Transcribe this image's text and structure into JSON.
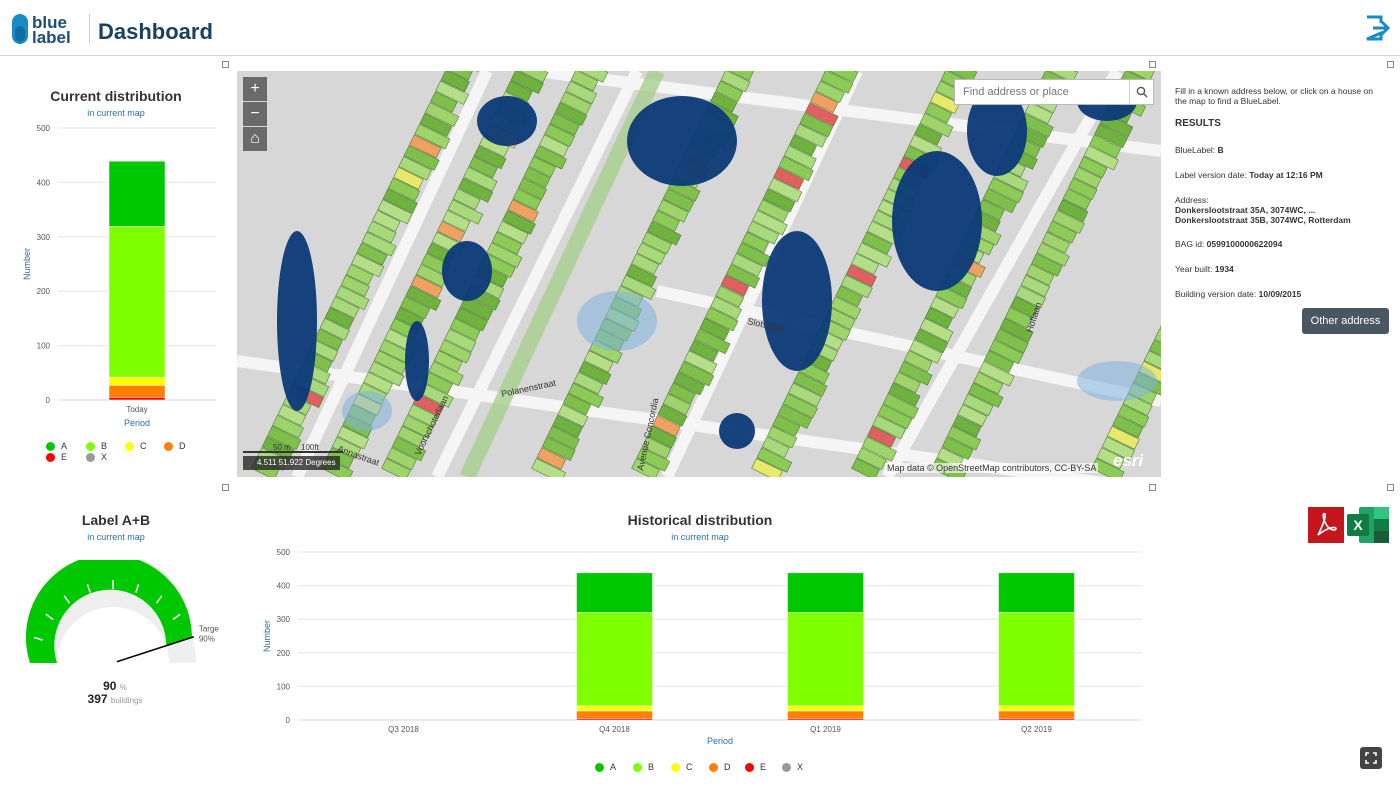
{
  "header": {
    "logo_line1": "blue",
    "logo_line2": "label",
    "title": "Dashboard",
    "logout_icon": "logout-icon"
  },
  "current_distribution": {
    "title": "Current distribution",
    "subtitle": "in current map",
    "chart_data": {
      "type": "bar",
      "stacked": true,
      "categories": [
        "Today"
      ],
      "series": [
        {
          "name": "A",
          "color": "#00c800",
          "values": [
            120
          ]
        },
        {
          "name": "B",
          "color": "#80ff00",
          "values": [
            277
          ]
        },
        {
          "name": "C",
          "color": "#ffff00",
          "values": [
            15
          ]
        },
        {
          "name": "D",
          "color": "#ff7f00",
          "values": [
            22
          ]
        },
        {
          "name": "E",
          "color": "#ff0000",
          "values": [
            5
          ]
        },
        {
          "name": "X",
          "color": "#999999",
          "values": [
            0
          ]
        }
      ],
      "xlabel": "Period",
      "ylabel": "Number",
      "ylim": [
        0,
        500
      ],
      "yticks": [
        "0",
        "100",
        "200",
        "300",
        "400",
        "500"
      ]
    }
  },
  "legend": [
    {
      "label": "A",
      "color": "#00c800"
    },
    {
      "label": "B",
      "color": "#80ff00"
    },
    {
      "label": "C",
      "color": "#ffff00"
    },
    {
      "label": "D",
      "color": "#ff7f00"
    },
    {
      "label": "E",
      "color": "#ff0000"
    },
    {
      "label": "X",
      "color": "#999999"
    }
  ],
  "map": {
    "search_placeholder": "Find address or place",
    "zoom_in": "+",
    "zoom_out": "−",
    "home": "⌂",
    "coords": "4.511 51.922 Degrees",
    "scale_m": "50 m",
    "scale_ft": "100ft",
    "attribution": "Map data © OpenStreetMap contributors, CC-BY-SA",
    "esri": "esri",
    "streets": [
      "Polanenstraat",
      "Annastraat",
      "Voorschoterlaan",
      "Avenue Concordia",
      "Slotstraat",
      "Hoflaan"
    ]
  },
  "info": {
    "intro": "Fill in a known address below, or click on a house on the map to find a BlueLabel.",
    "results": "RESULTS",
    "bluelabel_label": "BlueLabel:",
    "bluelabel_value": "B",
    "version_label": "Label version date:",
    "version_value": "Today at 12:16 PM",
    "address_label": "Address:",
    "address_line1": "Donkerslootstraat 35A, 3074WC, ...",
    "address_line2": "Donkerslootstraat 35B, 3074WC, Rotterdam",
    "bag_label": "BAG id:",
    "bag_value": "0599100000622094",
    "year_label": "Year built:",
    "year_value": "1934",
    "building_label": "Building version date:",
    "building_value": "10/09/2015",
    "other_button": "Other address"
  },
  "gauge": {
    "title": "Label A+B",
    "subtitle": "in current map",
    "value": 90,
    "value_text": "90",
    "unit": "%",
    "count": "397",
    "count_unit": "buildings",
    "target_label": "Targe",
    "target_value": "90%",
    "target": 90,
    "color": "#00c800"
  },
  "historical_distribution": {
    "title": "Historical distribution",
    "subtitle": "in current map",
    "chart_data": {
      "type": "bar",
      "stacked": true,
      "categories": [
        "Q3 2018",
        "Q4 2018",
        "Q1 2019",
        "Q2 2019"
      ],
      "series": [
        {
          "name": "A",
          "color": "#00c800",
          "values": [
            0,
            118,
            118,
            118
          ]
        },
        {
          "name": "B",
          "color": "#80ff00",
          "values": [
            0,
            278,
            278,
            278
          ]
        },
        {
          "name": "C",
          "color": "#ffff00",
          "values": [
            0,
            15,
            15,
            15
          ]
        },
        {
          "name": "D",
          "color": "#ff7f00",
          "values": [
            0,
            22,
            22,
            22
          ]
        },
        {
          "name": "E",
          "color": "#ff0000",
          "values": [
            0,
            5,
            5,
            5
          ]
        },
        {
          "name": "X",
          "color": "#999999",
          "values": [
            0,
            0,
            0,
            0
          ]
        }
      ],
      "xlabel": "Period",
      "ylabel": "Number",
      "ylim": [
        0,
        500
      ],
      "yticks": [
        "0",
        "100",
        "200",
        "300",
        "400",
        "500"
      ]
    }
  },
  "exports": {
    "pdf_icon": "pdf-export-icon",
    "excel_icon": "excel-export-icon",
    "pdf_glyph": "A",
    "excel_glyph": "X"
  }
}
